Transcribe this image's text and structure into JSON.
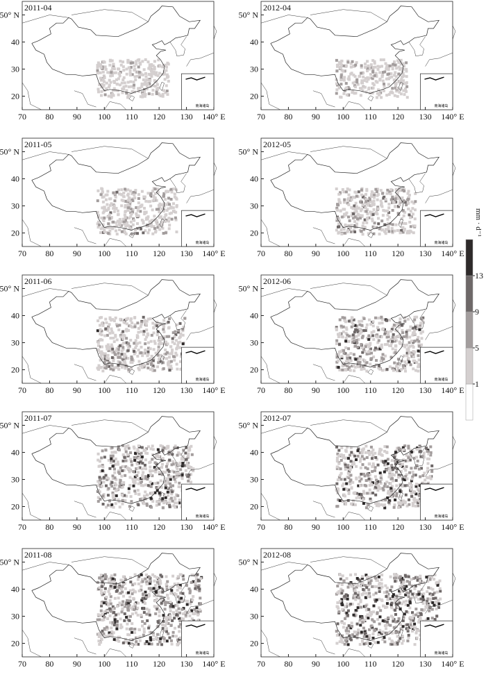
{
  "map": {
    "xlim": [
      70,
      140
    ],
    "ylim": [
      15,
      55
    ],
    "xticks": [
      70,
      80,
      90,
      100,
      110,
      120,
      130,
      {
        "value": 140,
        "label": "140° E"
      }
    ],
    "yticks": [
      20,
      30,
      40,
      {
        "value": 50,
        "label": "50° N"
      }
    ],
    "inset_label": "南海诸岛",
    "panels": [
      {
        "label": "2011-04"
      },
      {
        "label": "2012-04"
      },
      {
        "label": "2011-05"
      },
      {
        "label": "2012-05"
      },
      {
        "label": "2011-06"
      },
      {
        "label": "2012-06"
      },
      {
        "label": "2011-07"
      },
      {
        "label": "2012-07"
      },
      {
        "label": "2011-08"
      },
      {
        "label": "2012-08"
      }
    ]
  },
  "colorbar": {
    "unit": "mm · d⁻¹",
    "ticks": [
      1,
      5,
      9,
      13
    ],
    "colors": [
      "#ffffff",
      "#d4cfcf",
      "#a39d9d",
      "#6e6868",
      "#2e2a2a"
    ]
  }
}
